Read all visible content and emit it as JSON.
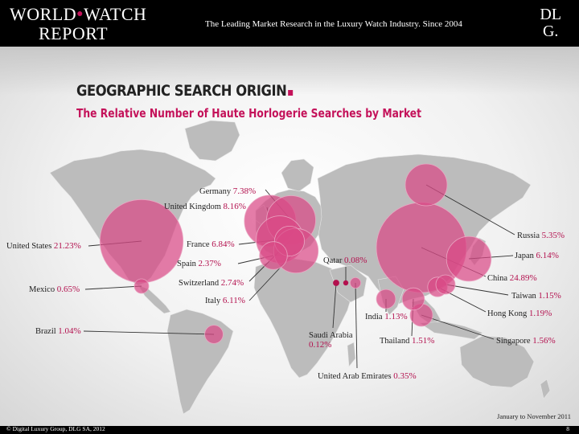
{
  "header": {
    "brand_line1": "WORLD",
    "brand_line1b": "WATCH",
    "brand_line2": "REPORT",
    "tagline": "The Leading Market Research in the Luxury Watch Industry. Since 2004",
    "dlg_line1": "DL",
    "dlg_line2": "G."
  },
  "footer": {
    "copyright": "© Digital Luxury Group, DLG SA, 2012",
    "page_number": "8",
    "period": "January to November 2011"
  },
  "colors": {
    "accent": "#c4125a",
    "bubble": "#d94a86",
    "land": "#b9b9b9"
  },
  "chart_data": {
    "type": "bubble-map",
    "title": "GEOGRAPHIC SEARCH ORIGIN",
    "subtitle": "The Relative Number of Haute Horlogerie Searches by Market",
    "unit": "%",
    "markets": [
      {
        "name": "United States",
        "value": 21.23,
        "value_label": "21.23%"
      },
      {
        "name": "Mexico",
        "value": 0.65,
        "value_label": "0.65%"
      },
      {
        "name": "Brazil",
        "value": 1.04,
        "value_label": "1.04%"
      },
      {
        "name": "United Kingdom",
        "value": 8.16,
        "value_label": "8.16%"
      },
      {
        "name": "Germany",
        "value": 7.38,
        "value_label": "7.38%"
      },
      {
        "name": "France",
        "value": 6.84,
        "value_label": "6.84%"
      },
      {
        "name": "Spain",
        "value": 2.37,
        "value_label": "2.37%"
      },
      {
        "name": "Switzerland",
        "value": 2.74,
        "value_label": "2.74%"
      },
      {
        "name": "Italy",
        "value": 6.11,
        "value_label": "6.11%"
      },
      {
        "name": "Qatar",
        "value": 0.08,
        "value_label": "0.08%"
      },
      {
        "name": "Saudi Arabia",
        "value": 0.12,
        "value_label": "0.12%"
      },
      {
        "name": "United Arab Emirates",
        "value": 0.35,
        "value_label": "0.35%"
      },
      {
        "name": "India",
        "value": 1.13,
        "value_label": "1.13%"
      },
      {
        "name": "Thailand",
        "value": 1.51,
        "value_label": "1.51%"
      },
      {
        "name": "Russia",
        "value": 5.35,
        "value_label": "5.35%"
      },
      {
        "name": "Japan",
        "value": 6.14,
        "value_label": "6.14%"
      },
      {
        "name": "China",
        "value": 24.89,
        "value_label": "24.89%"
      },
      {
        "name": "Taiwan",
        "value": 1.15,
        "value_label": "1.15%"
      },
      {
        "name": "Hong Kong",
        "value": 1.19,
        "value_label": "1.19%"
      },
      {
        "name": "Singapore",
        "value": 1.56,
        "value_label": "1.56%"
      }
    ]
  }
}
